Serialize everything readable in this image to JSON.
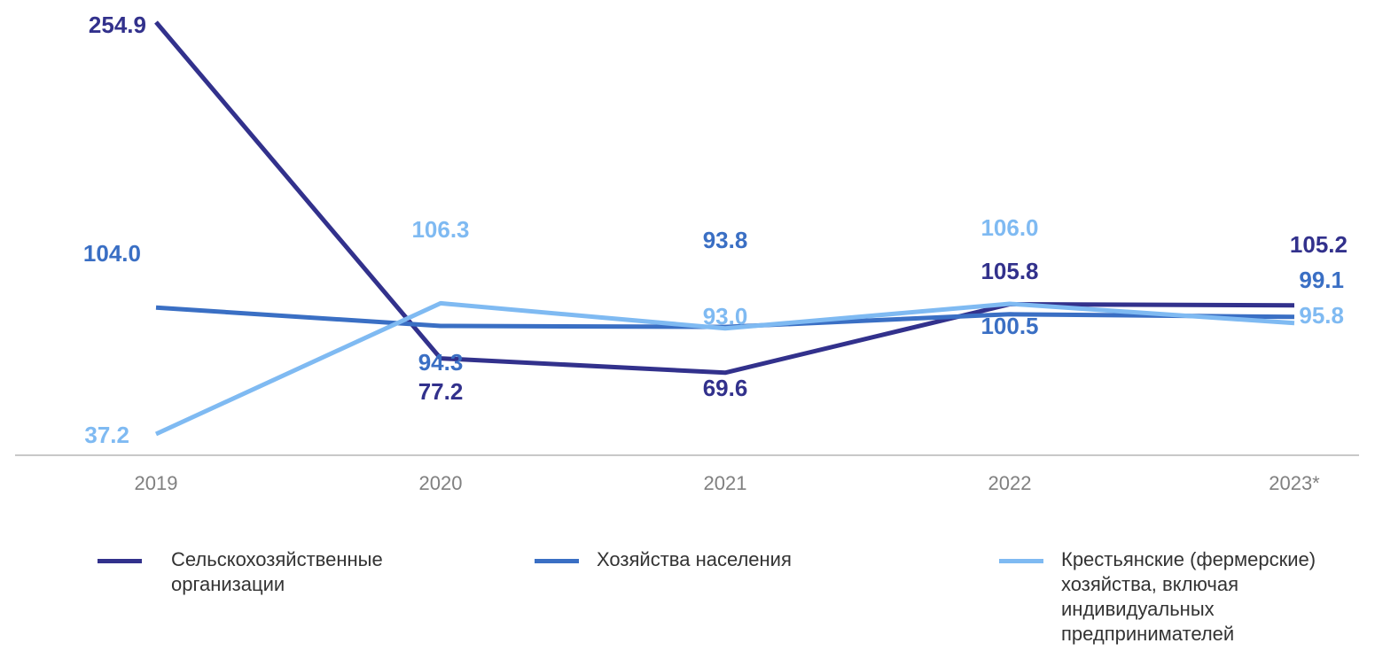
{
  "chart_data": {
    "type": "line",
    "title": "",
    "xlabel": "",
    "ylabel": "",
    "categories": [
      "2019",
      "2020",
      "2021",
      "2022",
      "2023*"
    ],
    "ylim": [
      30,
      260
    ],
    "grid": false,
    "legend_position": "bottom",
    "series": [
      {
        "name": "Сельскохозяйственные\nорганизации",
        "color": "#32318c",
        "values": [
          254.9,
          77.2,
          69.6,
          105.8,
          105.2
        ],
        "labels": [
          "254.9",
          "77.2",
          "69.6",
          "105.8",
          "105.2"
        ]
      },
      {
        "name": "Хозяйства населения",
        "color": "#3a6fc4",
        "values": [
          104.0,
          94.3,
          93.8,
          100.5,
          99.1
        ],
        "labels": [
          "104.0",
          "94.3",
          "93.8",
          "100.5",
          "99.1"
        ]
      },
      {
        "name": "Крестьянские (фермерские)\nхозяйства, включая\nиндивидуальных\nпредпринимателей",
        "color": "#7fbaf2",
        "values": [
          37.2,
          106.3,
          93.0,
          106.0,
          95.8
        ],
        "labels": [
          "37.2",
          "106.3",
          "93.0",
          "106.0",
          "95.8"
        ]
      }
    ]
  }
}
